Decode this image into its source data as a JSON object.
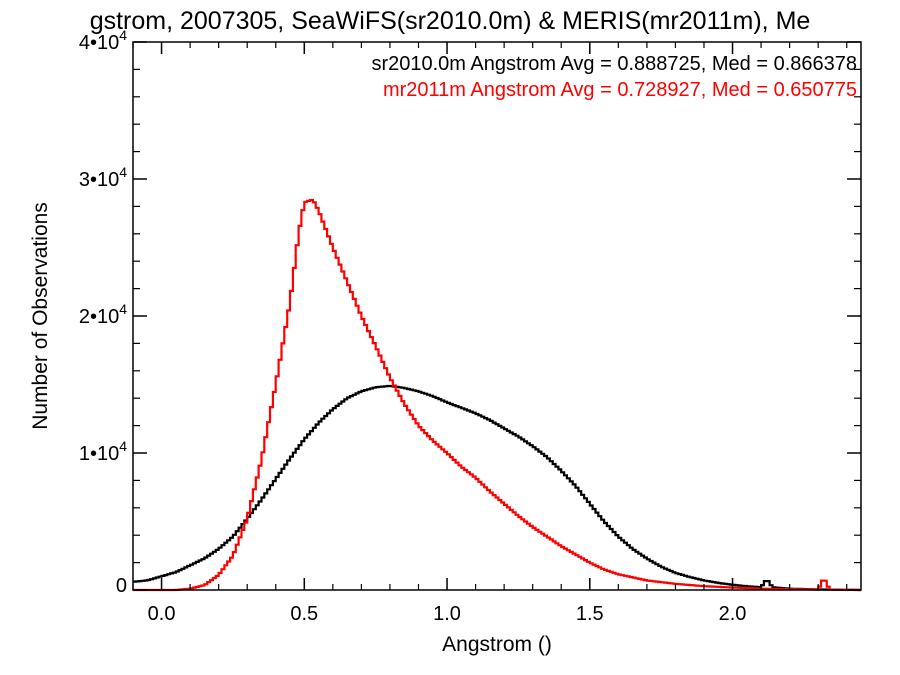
{
  "chart_data": {
    "type": "histogram-step",
    "title": "gstrom, 2007305, SeaWiFS(sr2010.0m) & MERIS(mr2011m), Me",
    "xlabel": "Angstrom ()",
    "ylabel": "Number of Observations",
    "xlim": [
      -0.1,
      2.45
    ],
    "ylim": [
      0,
      40000
    ],
    "xticks": [
      {
        "value": 0.0,
        "label": "0.0"
      },
      {
        "value": 0.5,
        "label": "0.5"
      },
      {
        "value": 1.0,
        "label": "1.0"
      },
      {
        "value": 1.5,
        "label": "1.5"
      },
      {
        "value": 2.0,
        "label": "2.0"
      }
    ],
    "yticks": [
      {
        "value": 0,
        "mant": "0",
        "exp": ""
      },
      {
        "value": 10000,
        "mant": "1•10",
        "exp": "4"
      },
      {
        "value": 20000,
        "mant": "2•10",
        "exp": "4"
      },
      {
        "value": 30000,
        "mant": "3•10",
        "exp": "4"
      },
      {
        "value": 40000,
        "mant": "4•10",
        "exp": "4"
      }
    ],
    "grid": false,
    "legend_position": "top-right",
    "series": [
      {
        "name": "sr2010.0m Angstrom Avg = 0.888725, Med = 0.866378",
        "color": "#000000",
        "points": [
          [
            -0.1,
            600
          ],
          [
            -0.05,
            700
          ],
          [
            0.0,
            1000
          ],
          [
            0.05,
            1300
          ],
          [
            0.1,
            1800
          ],
          [
            0.15,
            2300
          ],
          [
            0.2,
            3000
          ],
          [
            0.25,
            3900
          ],
          [
            0.3,
            5200
          ],
          [
            0.35,
            6600
          ],
          [
            0.4,
            8100
          ],
          [
            0.45,
            9600
          ],
          [
            0.5,
            11000
          ],
          [
            0.55,
            12200
          ],
          [
            0.6,
            13200
          ],
          [
            0.65,
            14000
          ],
          [
            0.7,
            14500
          ],
          [
            0.75,
            14800
          ],
          [
            0.8,
            14900
          ],
          [
            0.85,
            14750
          ],
          [
            0.9,
            14500
          ],
          [
            0.95,
            14150
          ],
          [
            1.0,
            13700
          ],
          [
            1.05,
            13300
          ],
          [
            1.1,
            12900
          ],
          [
            1.15,
            12400
          ],
          [
            1.2,
            11800
          ],
          [
            1.25,
            11200
          ],
          [
            1.3,
            10500
          ],
          [
            1.35,
            9700
          ],
          [
            1.4,
            8700
          ],
          [
            1.45,
            7600
          ],
          [
            1.5,
            6300
          ],
          [
            1.55,
            5000
          ],
          [
            1.6,
            3900
          ],
          [
            1.65,
            3000
          ],
          [
            1.7,
            2300
          ],
          [
            1.75,
            1700
          ],
          [
            1.8,
            1250
          ],
          [
            1.85,
            950
          ],
          [
            1.9,
            700
          ],
          [
            1.95,
            520
          ],
          [
            2.0,
            380
          ],
          [
            2.05,
            280
          ],
          [
            2.1,
            200
          ],
          [
            2.12,
            800
          ],
          [
            2.14,
            200
          ],
          [
            2.2,
            100
          ],
          [
            2.3,
            40
          ],
          [
            2.45,
            0
          ]
        ]
      },
      {
        "name": "mr2011m Angstrom Avg = 0.728927, Med = 0.650775",
        "color": "#ff0000",
        "points": [
          [
            -0.1,
            0
          ],
          [
            0.0,
            0
          ],
          [
            0.05,
            0
          ],
          [
            0.1,
            100
          ],
          [
            0.15,
            350
          ],
          [
            0.2,
            1100
          ],
          [
            0.25,
            2500
          ],
          [
            0.3,
            5200
          ],
          [
            0.35,
            9500
          ],
          [
            0.4,
            15000
          ],
          [
            0.45,
            21000
          ],
          [
            0.48,
            26000
          ],
          [
            0.5,
            28300
          ],
          [
            0.53,
            28500
          ],
          [
            0.55,
            27700
          ],
          [
            0.6,
            25000
          ],
          [
            0.65,
            22500
          ],
          [
            0.7,
            20000
          ],
          [
            0.75,
            17800
          ],
          [
            0.8,
            15500
          ],
          [
            0.85,
            13600
          ],
          [
            0.9,
            12000
          ],
          [
            0.95,
            10900
          ],
          [
            1.0,
            10000
          ],
          [
            1.05,
            9000
          ],
          [
            1.1,
            8200
          ],
          [
            1.15,
            7200
          ],
          [
            1.2,
            6300
          ],
          [
            1.25,
            5400
          ],
          [
            1.3,
            4600
          ],
          [
            1.35,
            3900
          ],
          [
            1.4,
            3200
          ],
          [
            1.45,
            2600
          ],
          [
            1.5,
            2000
          ],
          [
            1.55,
            1500
          ],
          [
            1.6,
            1150
          ],
          [
            1.7,
            700
          ],
          [
            1.8,
            450
          ],
          [
            1.9,
            280
          ],
          [
            2.0,
            180
          ],
          [
            2.1,
            100
          ],
          [
            2.2,
            60
          ],
          [
            2.3,
            30
          ],
          [
            2.32,
            900
          ],
          [
            2.34,
            20
          ],
          [
            2.45,
            0
          ]
        ]
      }
    ]
  }
}
